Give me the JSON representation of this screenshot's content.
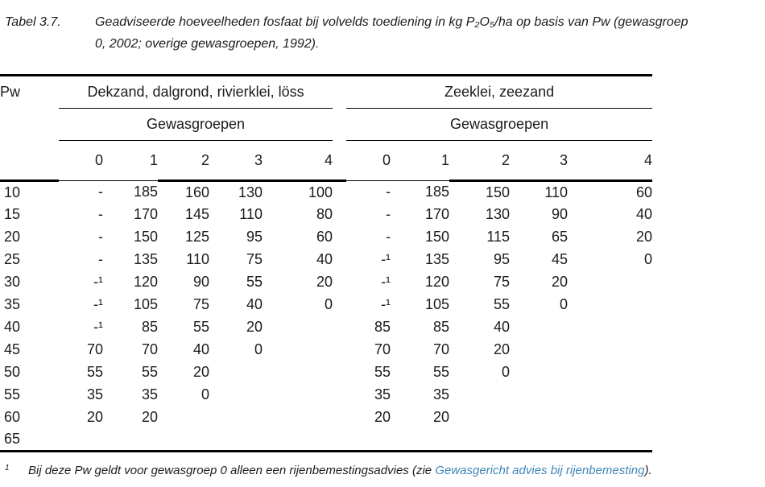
{
  "document": {
    "title_label": "Tabel 3.7.",
    "title_line1": "Geadviseerde hoeveelheden fosfaat bij volvelds toediening in kg P₂O₅/ha op basis van Pw (gewasgroep",
    "title_line2": "0, 2002; overige gewasgroepen, 1992)."
  },
  "table": {
    "pw_header": "Pw",
    "groups": [
      {
        "label": "Dekzand, dalgrond, rivierklei, löss",
        "subheader": "Gewasgroepen",
        "columns": [
          "0",
          "1",
          "2",
          "3",
          "4"
        ]
      },
      {
        "label": "Zeeklei, zeezand",
        "subheader": "Gewasgroepen",
        "columns": [
          "0",
          "1",
          "2",
          "3",
          "4"
        ]
      }
    ],
    "rows": [
      {
        "pw": "10",
        "left": [
          "-",
          "185",
          "160",
          "130",
          "100"
        ],
        "right": [
          "-",
          "185",
          "150",
          "110",
          "60"
        ]
      },
      {
        "pw": "15",
        "left": [
          "-",
          "170",
          "145",
          "110",
          "80"
        ],
        "right": [
          "-",
          "170",
          "130",
          "90",
          "40"
        ]
      },
      {
        "pw": "20",
        "left": [
          "-",
          "150",
          "125",
          "95",
          "60"
        ],
        "right": [
          "-",
          "150",
          "115",
          "65",
          "20"
        ]
      },
      {
        "pw": "25",
        "left": [
          "-",
          "135",
          "110",
          "75",
          "40"
        ],
        "right": [
          "-¹",
          "135",
          "95",
          "45",
          "0"
        ]
      },
      {
        "pw": "30",
        "left": [
          "-¹",
          "120",
          "90",
          "55",
          "20"
        ],
        "right": [
          "-¹",
          "120",
          "75",
          "20",
          ""
        ]
      },
      {
        "pw": "35",
        "left": [
          "-¹",
          "105",
          "75",
          "40",
          "0"
        ],
        "right": [
          "-¹",
          "105",
          "55",
          "0",
          ""
        ]
      },
      {
        "pw": "40",
        "left": [
          "-¹",
          "85",
          "55",
          "20",
          ""
        ],
        "right": [
          "85",
          "85",
          "40",
          "",
          ""
        ]
      },
      {
        "pw": "45",
        "left": [
          "70",
          "70",
          "40",
          "0",
          ""
        ],
        "right": [
          "70",
          "70",
          "20",
          "",
          ""
        ]
      },
      {
        "pw": "50",
        "left": [
          "55",
          "55",
          "20",
          "",
          ""
        ],
        "right": [
          "55",
          "55",
          "0",
          "",
          ""
        ]
      },
      {
        "pw": "55",
        "left": [
          "35",
          "35",
          "0",
          "",
          ""
        ],
        "right": [
          "35",
          "35",
          "",
          "",
          ""
        ]
      },
      {
        "pw": "60",
        "left": [
          "20",
          "20",
          "",
          "",
          ""
        ],
        "right": [
          "20",
          "20",
          "",
          "",
          ""
        ]
      },
      {
        "pw": "65",
        "left": [
          "",
          "",
          "",
          "",
          ""
        ],
        "right": [
          "",
          "",
          "",
          "",
          ""
        ]
      }
    ]
  },
  "footnote": {
    "marker": "1",
    "text_before": "Bij deze Pw geldt voor gewasgroep 0 alleen een rijenbemestingsadvies (zie ",
    "link": "Gewasgericht advies bij rijenbemesting",
    "text_after": ")."
  },
  "colors": {
    "background": "#ffffff",
    "text": "#1c1c1c",
    "rule": "#000000",
    "link": "#3e86b6"
  }
}
